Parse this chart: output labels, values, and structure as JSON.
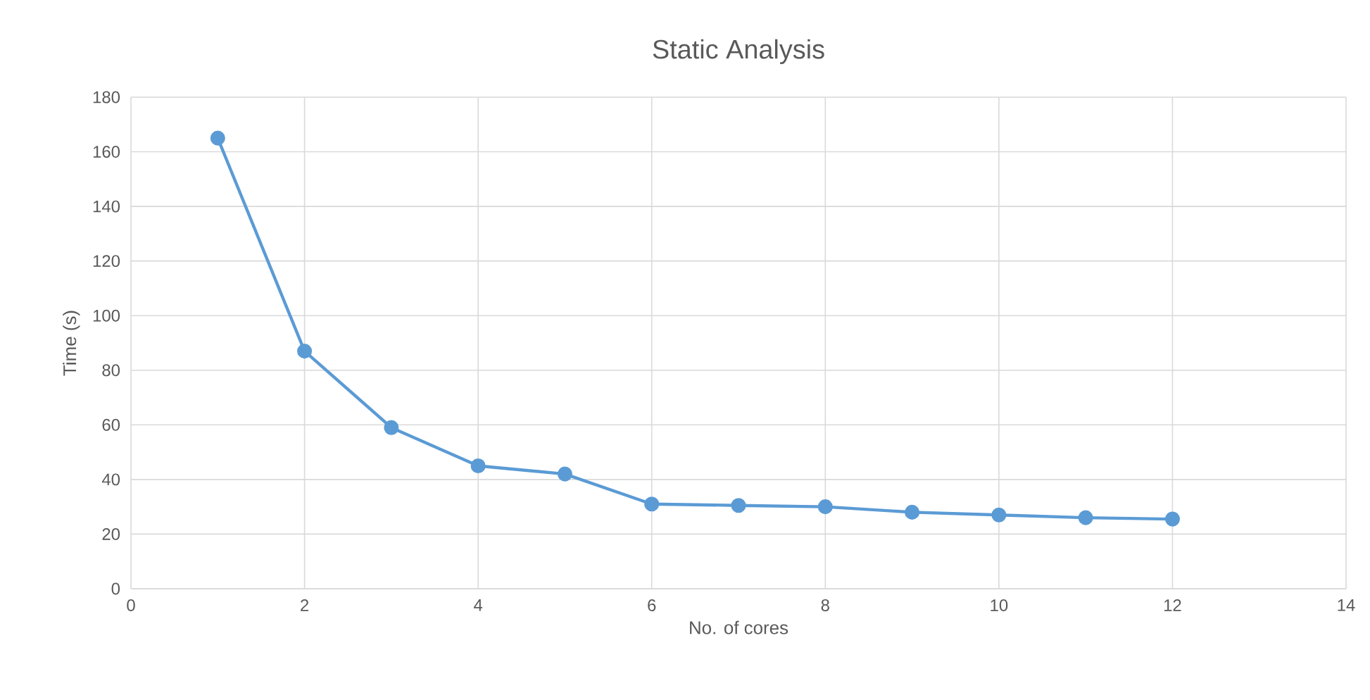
{
  "chart_data": {
    "type": "line",
    "title": "Static Analysis",
    "xlabel": "No. of cores",
    "ylabel": "Time (s)",
    "x": [
      1,
      2,
      3,
      4,
      5,
      6,
      7,
      8,
      9,
      10,
      11,
      12
    ],
    "series": [
      {
        "color": "#5b9bd5",
        "values": [
          165,
          87,
          59,
          45,
          42,
          31,
          30.5,
          30,
          28,
          27,
          26,
          25.5
        ]
      }
    ],
    "xlim": [
      0,
      14
    ],
    "xticks": [
      0,
      2,
      4,
      6,
      8,
      10,
      12,
      14
    ],
    "ylim": [
      0,
      180
    ],
    "yticks": [
      0,
      20,
      40,
      60,
      80,
      100,
      120,
      140,
      160,
      180
    ],
    "grid": true,
    "marker": "circle",
    "line_style": "solid"
  }
}
